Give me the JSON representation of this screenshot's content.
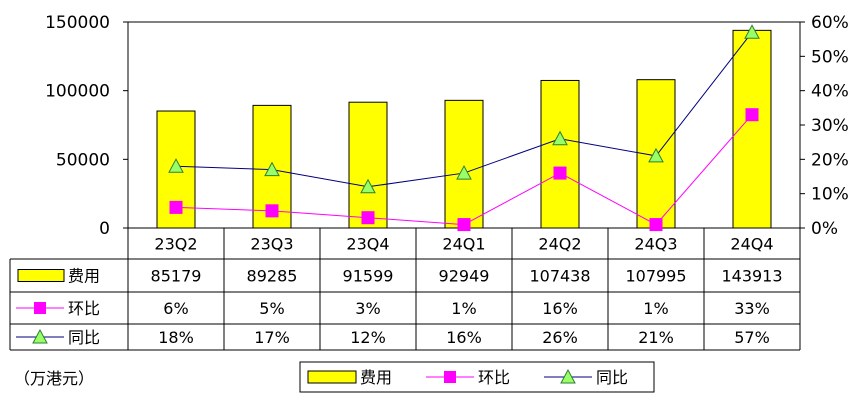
{
  "chart_data": {
    "type": "bar",
    "categories": [
      "23Q2",
      "23Q3",
      "23Q4",
      "24Q1",
      "24Q2",
      "24Q3",
      "24Q4"
    ],
    "series": [
      {
        "name": "费用",
        "type": "bar",
        "axis": "left",
        "values": [
          85179,
          89285,
          91599,
          92949,
          107438,
          107995,
          143913
        ],
        "labels": [
          "85179",
          "89285",
          "91599",
          "92949",
          "107438",
          "107995",
          "143913"
        ],
        "color": "#ffff00",
        "marker": "none"
      },
      {
        "name": "环比",
        "type": "line",
        "axis": "right",
        "values": [
          6,
          5,
          3,
          1,
          16,
          1,
          33
        ],
        "labels": [
          "6%",
          "5%",
          "3%",
          "1%",
          "16%",
          "1%",
          "33%"
        ],
        "color": "#ff00ff",
        "marker": "square"
      },
      {
        "name": "同比",
        "type": "line",
        "axis": "right",
        "values": [
          18,
          17,
          12,
          16,
          26,
          21,
          57
        ],
        "labels": [
          "18%",
          "17%",
          "12%",
          "16%",
          "26%",
          "21%",
          "57%"
        ],
        "color": "#000080",
        "marker": "triangle",
        "marker_color": "#99ff66"
      }
    ],
    "y_left": {
      "min": 0,
      "max": 150000,
      "ticks": [
        "0",
        "50000",
        "100000",
        "150000"
      ]
    },
    "y_right": {
      "min": 0,
      "max": 60,
      "unit": "%",
      "ticks": [
        "0%",
        "10%",
        "20%",
        "30%",
        "40%",
        "50%",
        "60%"
      ]
    },
    "unit_note": "（万港元）",
    "legend_position": "bottom-center",
    "grid": false,
    "data_table": true
  }
}
